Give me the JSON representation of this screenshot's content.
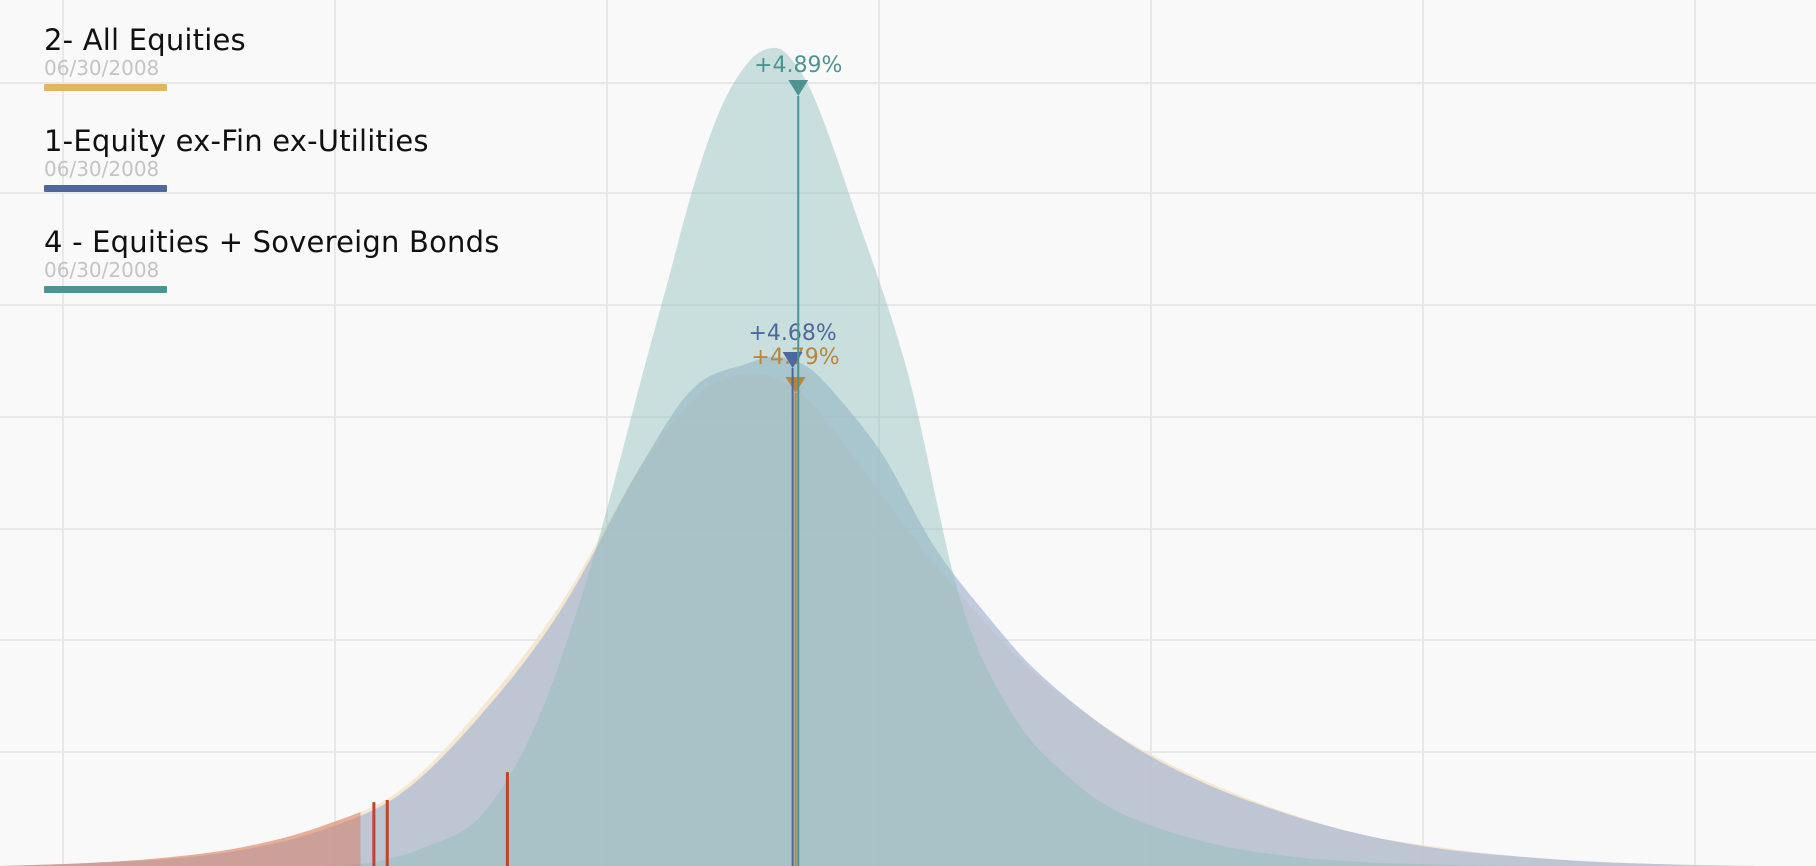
{
  "colors": {
    "background": "#f9f9f9",
    "grid": "#e8e8e8",
    "all_equities": "#e2b562",
    "equity_ex_fin": "#4e689e",
    "equities_bonds": "#4e9391",
    "tail_marker": "#c0432e"
  },
  "legend": {
    "items": [
      {
        "name": "2- All Equities",
        "date": "06/30/2008",
        "color": "#e2b562"
      },
      {
        "name": "1-Equity ex-Fin ex-Utilities",
        "date": "06/30/2008",
        "color": "#4e689e"
      },
      {
        "name": "4 - Equities + Sovereign Bonds",
        "date": "06/30/2008",
        "color": "#4e9391"
      }
    ]
  },
  "chart_data": {
    "type": "area",
    "title": "",
    "xlabel": "",
    "ylabel": "",
    "grid": true,
    "legend_position": "top-left",
    "series": [
      {
        "name": "2- All Equities",
        "color": "#e2b562",
        "mean_label": "+4.79%",
        "mean": 4.79,
        "tail_markers": [
          -11.0
        ],
        "points": [
          [
            -25,
            0
          ],
          [
            -22,
            0.002
          ],
          [
            -19,
            0.006
          ],
          [
            -16,
            0.014
          ],
          [
            -13,
            0.03
          ],
          [
            -10,
            0.058
          ],
          [
            -7,
            0.12
          ],
          [
            -4,
            0.2
          ],
          [
            -1,
            0.305
          ],
          [
            1,
            0.357
          ],
          [
            2,
            0.37
          ],
          [
            3,
            0.375
          ],
          [
            4,
            0.372
          ],
          [
            5,
            0.36
          ],
          [
            6,
            0.338
          ],
          [
            8,
            0.283
          ],
          [
            10,
            0.23
          ],
          [
            12,
            0.183
          ],
          [
            14,
            0.142
          ],
          [
            17,
            0.098
          ],
          [
            20,
            0.066
          ],
          [
            23,
            0.042
          ],
          [
            26,
            0.024
          ],
          [
            29,
            0.014
          ],
          [
            32,
            0.007
          ],
          [
            35,
            0.003
          ],
          [
            38,
            0.001
          ],
          [
            41,
            0
          ]
        ]
      },
      {
        "name": "1-Equity ex-Fin ex-Utilities",
        "color": "#4e689e",
        "mean_label": "+4.68%",
        "mean": 4.68,
        "tail_markers": [
          -10.5
        ],
        "points": [
          [
            -25,
            0
          ],
          [
            -22,
            0.002
          ],
          [
            -19,
            0.005
          ],
          [
            -16,
            0.012
          ],
          [
            -13,
            0.027
          ],
          [
            -10,
            0.055
          ],
          [
            -7,
            0.115
          ],
          [
            -4,
            0.195
          ],
          [
            -1,
            0.305
          ],
          [
            1,
            0.365
          ],
          [
            3,
            0.383
          ],
          [
            4,
            0.388
          ],
          [
            5,
            0.383
          ],
          [
            6,
            0.366
          ],
          [
            8,
            0.315
          ],
          [
            10,
            0.243
          ],
          [
            12,
            0.19
          ],
          [
            14,
            0.145
          ],
          [
            17,
            0.097
          ],
          [
            20,
            0.064
          ],
          [
            23,
            0.041
          ],
          [
            26,
            0.024
          ],
          [
            29,
            0.013
          ],
          [
            32,
            0.007
          ],
          [
            35,
            0.003
          ],
          [
            38,
            0.001
          ],
          [
            41,
            0
          ]
        ]
      },
      {
        "name": "4 - Equities + Sovereign Bonds",
        "color": "#4e9391",
        "mean_label": "+4.89%",
        "mean": 4.89,
        "tail_markers": [
          -6.0
        ],
        "points": [
          [
            -13,
            0
          ],
          [
            -11,
            0.003
          ],
          [
            -9,
            0.015
          ],
          [
            -7,
            0.038
          ],
          [
            -5,
            0.105
          ],
          [
            -3,
            0.22
          ],
          [
            -1,
            0.37
          ],
          [
            0,
            0.445
          ],
          [
            1,
            0.52
          ],
          [
            2,
            0.578
          ],
          [
            3,
            0.612
          ],
          [
            3.8,
            0.623
          ],
          [
            4.5,
            0.618
          ],
          [
            5.5,
            0.585
          ],
          [
            7,
            0.5
          ],
          [
            9,
            0.375
          ],
          [
            11,
            0.2
          ],
          [
            13,
            0.113
          ],
          [
            15,
            0.068
          ],
          [
            17,
            0.04
          ],
          [
            20,
            0.019
          ],
          [
            23,
            0.008
          ],
          [
            26,
            0.003
          ],
          [
            29,
            0.001
          ],
          [
            32,
            0
          ]
        ]
      }
    ]
  }
}
